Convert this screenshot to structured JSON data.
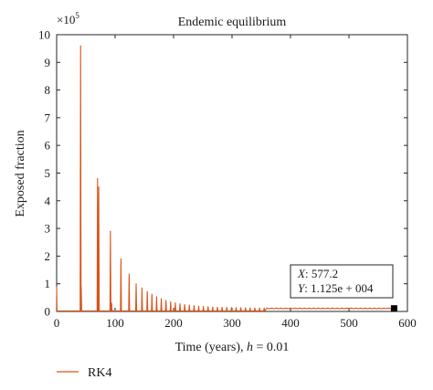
{
  "chart_data": {
    "type": "line",
    "title": "Endemic equilibrium",
    "xlabel_prefix": "Time (years), ",
    "xlabel_var": "h",
    "xlabel_suffix": " = 0.01",
    "ylabel": "Exposed fraction",
    "y_multiplier_base": "×10",
    "y_multiplier_exp": "5",
    "xlim": [
      0,
      600
    ],
    "ylim": [
      0,
      10
    ],
    "xticks": [
      0,
      100,
      200,
      300,
      400,
      500,
      600
    ],
    "yticks": [
      0,
      1,
      2,
      3,
      4,
      5,
      6,
      7,
      8,
      9,
      10
    ],
    "grid": false,
    "legend_position": "bottom-left, below axes",
    "series": [
      {
        "name": "RK4",
        "color": "#d95319",
        "baseline": 0.02,
        "tail_level": 0.11,
        "spikes": [
          [
            41,
            9.6
          ],
          [
            42,
            0.9
          ],
          [
            70,
            4.8
          ],
          [
            72,
            4.5
          ],
          [
            92,
            2.9
          ],
          [
            94,
            0.3
          ],
          [
            110,
            1.9
          ],
          [
            124,
            1.35
          ],
          [
            136,
            1.0
          ],
          [
            146,
            0.85
          ],
          [
            155,
            0.72
          ],
          [
            163,
            0.62
          ],
          [
            171,
            0.53
          ],
          [
            179,
            0.46
          ],
          [
            187,
            0.4
          ],
          [
            195,
            0.35
          ],
          [
            203,
            0.31
          ],
          [
            211,
            0.28
          ],
          [
            219,
            0.25
          ],
          [
            227,
            0.23
          ],
          [
            235,
            0.21
          ],
          [
            243,
            0.19
          ],
          [
            251,
            0.18
          ],
          [
            259,
            0.17
          ],
          [
            267,
            0.16
          ],
          [
            275,
            0.155
          ],
          [
            283,
            0.15
          ],
          [
            291,
            0.145
          ],
          [
            299,
            0.14
          ],
          [
            307,
            0.137
          ],
          [
            315,
            0.134
          ],
          [
            323,
            0.132
          ],
          [
            331,
            0.13
          ],
          [
            339,
            0.128
          ],
          [
            347,
            0.126
          ],
          [
            355,
            0.124
          ]
        ]
      }
    ],
    "datatip": {
      "x": 577.2,
      "y_text": "1.125e + 004",
      "x_label": "X",
      "y_label": "Y",
      "x_text": "577.2"
    }
  }
}
